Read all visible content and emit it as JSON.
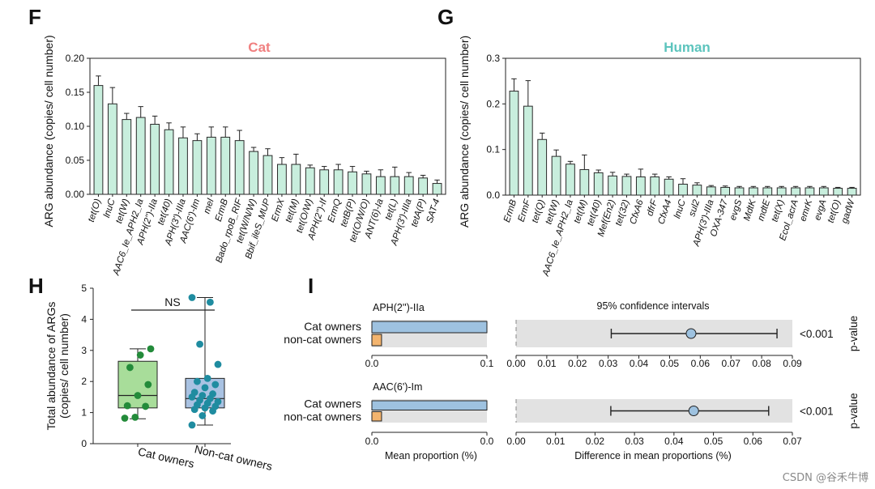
{
  "panels": {
    "F": "F",
    "G": "G",
    "H": "H",
    "I": "I"
  },
  "colors": {
    "bar_fill": "#c8eedd",
    "bar_stroke": "#2a2a2a",
    "cat_title": "#f08080",
    "human_title": "#5cc4bd",
    "box_cat": "#a8dd9a",
    "box_noncat": "#a9c2e2",
    "dot_cat": "#238b3a",
    "dot_noncat": "#1f8ca0",
    "cat_bar": "#9ec2e0",
    "noncat_bar": "#f3b46e",
    "ci_band": "#e2e2e2",
    "ci_dot": "#9ec2e0"
  },
  "chart_data": [
    {
      "id": "F",
      "type": "bar",
      "title": "Cat",
      "ylabel": "ARG abundance (copies/ cell number)",
      "ylim": [
        0,
        0.2
      ],
      "yticks": [
        "0.00",
        "0.05",
        "0.10",
        "0.15",
        "0.20"
      ],
      "categories": [
        "tet(O)",
        "lnuC",
        "tet(W)",
        "AAC6_Ie_APH2_Ia",
        "APH(2'')-IIa",
        "tet(40)",
        "APH(3')-IIIa",
        "AAC(6')-Im",
        "mel",
        "ErmB",
        "Bado_rpoB_RIF",
        "tet(W/N/W)",
        "Bbif_ileS_MUP",
        "ErmX",
        "tet(M)",
        "tet(O/W)",
        "APH(2'')-If",
        "ErmQ",
        "tetB(P)",
        "tet(O/W/O)",
        "ANT(6)-Ia",
        "tet(L)",
        "APH(3')-IIIa",
        "tetA(P)",
        "SAT-4"
      ],
      "values": [
        0.16,
        0.133,
        0.11,
        0.113,
        0.103,
        0.095,
        0.083,
        0.079,
        0.084,
        0.084,
        0.079,
        0.063,
        0.057,
        0.044,
        0.044,
        0.039,
        0.036,
        0.036,
        0.033,
        0.03,
        0.026,
        0.026,
        0.026,
        0.024,
        0.016
      ],
      "errors": [
        0.014,
        0.024,
        0.009,
        0.016,
        0.012,
        0.01,
        0.016,
        0.01,
        0.015,
        0.015,
        0.015,
        0.006,
        0.01,
        0.01,
        0.015,
        0.004,
        0.005,
        0.008,
        0.008,
        0.004,
        0.01,
        0.014,
        0.006,
        0.004,
        0.005
      ]
    },
    {
      "id": "G",
      "type": "bar",
      "title": "Human",
      "ylabel": "ARG abundance (copies/ cell number)",
      "ylim": [
        0,
        0.3
      ],
      "yticks": [
        "0.0",
        "0.1",
        "0.2",
        "0.3"
      ],
      "categories": [
        "ErmB",
        "ErmF",
        "tet(Q)",
        "tet(W)",
        "AAC6_Ie_APH2_Ia",
        "tet(M)",
        "tet(40)",
        "Mef(En2)",
        "tet(32)",
        "CfxA6",
        "dfrF",
        "CfxA4",
        "lnuC",
        "sul2",
        "APH(3')-IIIa",
        "OXA-347",
        "evgS",
        "MdtK",
        "mdtE",
        "tet(X)",
        "Ecol_acrA",
        "emrK",
        "evgA",
        "tet(O)",
        "gadW"
      ],
      "values": [
        0.228,
        0.195,
        0.122,
        0.085,
        0.068,
        0.056,
        0.049,
        0.042,
        0.041,
        0.04,
        0.04,
        0.035,
        0.024,
        0.022,
        0.018,
        0.017,
        0.016,
        0.016,
        0.016,
        0.016,
        0.016,
        0.016,
        0.016,
        0.015,
        0.015
      ],
      "errors": [
        0.027,
        0.056,
        0.014,
        0.014,
        0.006,
        0.032,
        0.006,
        0.008,
        0.005,
        0.017,
        0.006,
        0.005,
        0.012,
        0.005,
        0.003,
        0.003,
        0.003,
        0.003,
        0.003,
        0.003,
        0.003,
        0.003,
        0.003,
        0.002,
        0.002
      ]
    },
    {
      "id": "H",
      "type": "box",
      "ylabel_line1": "Total abundance of ARGs",
      "ylabel_line2": "(copies/ cell number)",
      "ylim": [
        0,
        5
      ],
      "yticks": [
        "0",
        "1",
        "2",
        "3",
        "4",
        "5"
      ],
      "significance": "NS",
      "groups": [
        {
          "name": "Cat owners",
          "q1": 1.15,
          "median": 1.55,
          "q3": 2.65,
          "whisker_low": 0.8,
          "whisker_high": 3.05,
          "points": [
            0.82,
            0.85,
            1.2,
            1.22,
            1.55,
            1.9,
            2.45,
            2.85,
            3.05
          ]
        },
        {
          "name": "Non-cat owners",
          "q1": 1.15,
          "median": 1.45,
          "q3": 2.1,
          "whisker_low": 0.6,
          "whisker_high": 4.7,
          "points": [
            0.6,
            0.9,
            1.05,
            1.1,
            1.15,
            1.2,
            1.25,
            1.3,
            1.35,
            1.4,
            1.45,
            1.5,
            1.55,
            1.6,
            1.65,
            1.8,
            1.9,
            2.0,
            2.1,
            2.55,
            3.2,
            4.55,
            4.7
          ]
        }
      ]
    },
    {
      "id": "I",
      "type": "bar+ci",
      "series_labels": [
        "Cat owners",
        "non-cat owners"
      ],
      "ci_title": "95% confidence intervals",
      "pvalue_label": "p-value",
      "xlabel_left": "Mean proportion (%)",
      "xlabel_right": "Difference in mean proportions (%)",
      "rows": [
        {
          "gene": "APH(2'')-IIa",
          "cat": 0.1,
          "noncat": 0.007,
          "left_ticks": [
            "0.0",
            "0.1"
          ],
          "left_max": 0.1,
          "ci_low": 0.031,
          "ci_mid": 0.057,
          "ci_high": 0.085,
          "ci_max": 0.09,
          "ci_ticks": [
            "0.00",
            "0.01",
            "0.02",
            "0.03",
            "0.04",
            "0.05",
            "0.06",
            "0.07",
            "0.08",
            "0.09"
          ],
          "p": "<0.001"
        },
        {
          "gene": "AAC(6')-Im",
          "cat": 0.1,
          "noncat": 0.007,
          "left_ticks": [
            "0.0",
            "0.0"
          ],
          "left_max": 0.1,
          "ci_low": 0.024,
          "ci_mid": 0.045,
          "ci_high": 0.064,
          "ci_max": 0.07,
          "ci_ticks": [
            "0.00",
            "0.01",
            "0.02",
            "0.03",
            "0.04",
            "0.05",
            "0.06",
            "0.07"
          ],
          "p": "<0.001"
        }
      ]
    }
  ],
  "watermark": "CSDN @谷禾牛博"
}
